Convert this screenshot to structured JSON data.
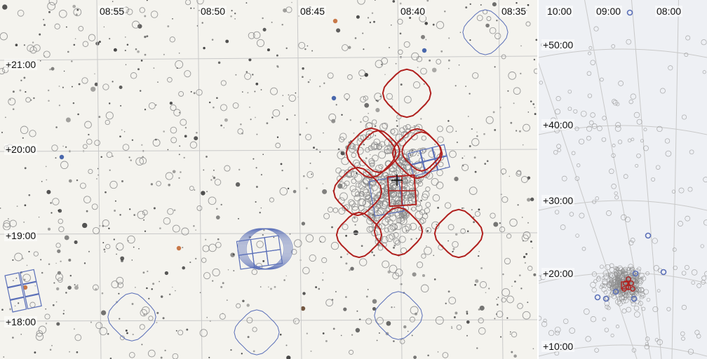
{
  "main_view": {
    "ra_labels": [
      "08:55",
      "08:50",
      "08:45",
      "08:40",
      "08:35"
    ],
    "dec_labels": [
      "+21:00",
      "+20:00",
      "+19:00",
      "+18:00"
    ]
  },
  "inset_view": {
    "ra_labels": [
      "10:00",
      "09:00",
      "08:00"
    ],
    "dec_labels": [
      "+50:00",
      "+40:00",
      "+30:00",
      "+20:00",
      "+10:00"
    ]
  },
  "colors": {
    "background": "#f4f3ee",
    "grid": "#c9c9c9",
    "catalog_circle": "#8a8a8a",
    "observation_red": "#b0201e",
    "footprint_blue": "#5a6fb8",
    "star": "#333333"
  },
  "icons": {
    "center": "crosshair-icon"
  }
}
